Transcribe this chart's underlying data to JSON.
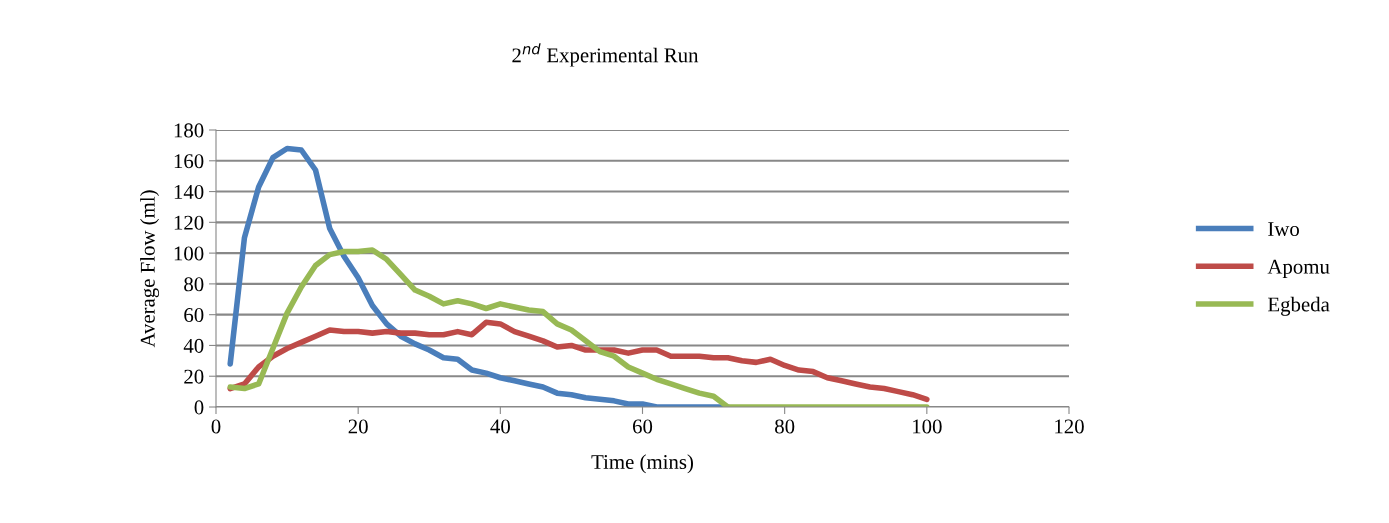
{
  "chart_data": {
    "type": "line",
    "title": "2$^{nd}$ Experimental Run",
    "xlabel": "Time (mins)",
    "ylabel": "Average Flow (ml)",
    "x": [
      2,
      4,
      6,
      8,
      10,
      12,
      14,
      16,
      18,
      20,
      22,
      24,
      26,
      28,
      30,
      32,
      34,
      36,
      38,
      40,
      42,
      44,
      46,
      48,
      50,
      52,
      54,
      56,
      58,
      60,
      62,
      64,
      66,
      68,
      70,
      72,
      74,
      76,
      78,
      80,
      82,
      84,
      86,
      88,
      90,
      92,
      94,
      96,
      98,
      100
    ],
    "series": [
      {
        "name": "Iwo",
        "color": "#4a7ebb",
        "values": [
          28,
          110,
          143,
          162,
          168,
          167,
          154,
          116,
          98,
          84,
          66,
          54,
          46,
          41,
          37,
          32,
          31,
          24,
          22,
          19,
          17,
          15,
          13,
          9,
          8,
          6,
          5,
          4,
          2,
          2,
          0,
          0,
          0,
          0,
          0,
          0,
          null,
          null,
          null,
          null,
          null,
          null,
          null,
          null,
          null,
          null,
          null,
          null,
          null,
          null
        ]
      },
      {
        "name": "Apomu",
        "color": "#be4b48",
        "values": [
          12,
          15,
          26,
          33,
          38,
          42,
          46,
          50,
          49,
          49,
          48,
          49,
          48,
          48,
          47,
          47,
          49,
          47,
          55,
          54,
          49,
          46,
          43,
          39,
          40,
          37,
          37,
          37,
          35,
          37,
          37,
          33,
          33,
          33,
          32,
          32,
          30,
          29,
          31,
          27,
          24,
          23,
          19,
          17,
          15,
          13,
          12,
          10,
          8,
          5
        ]
      },
      {
        "name": "Egbeda",
        "color": "#98b954",
        "values": [
          13,
          12,
          15,
          38,
          61,
          78,
          92,
          99,
          101,
          101,
          102,
          96,
          86,
          76,
          72,
          67,
          69,
          67,
          64,
          67,
          65,
          63,
          62,
          54,
          50,
          43,
          36,
          33,
          26,
          22,
          18,
          15,
          12,
          9,
          7,
          0,
          0,
          0,
          0,
          0,
          0,
          0,
          0,
          0,
          0,
          0,
          0,
          0,
          0,
          0
        ]
      }
    ],
    "xlim": [
      0,
      120
    ],
    "xticks": [
      0,
      20,
      40,
      60,
      80,
      100,
      120
    ],
    "ylim": [
      0,
      180
    ],
    "yticks": [
      0,
      20,
      40,
      60,
      80,
      100,
      120,
      140,
      160,
      180
    ],
    "grid": "y",
    "legend": "right",
    "marker": "none",
    "line_style": "solid"
  }
}
